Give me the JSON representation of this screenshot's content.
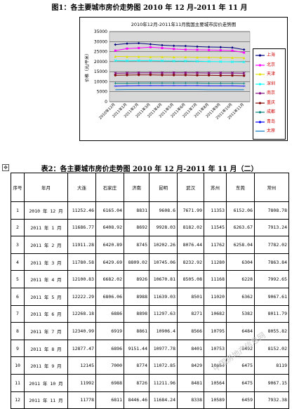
{
  "figure_title": "图1：各主要城市房价走势图 2010 年 12 月-2011 年 11 月",
  "table_title": "表2：各主要城市房价走势图 2010 年 12 月-2011 年 11 月（二）",
  "table_handle_icon": "move-cross-icon",
  "watermark": "中国房地产信息网",
  "chart_data": {
    "type": "line",
    "title": "2010年12月-2011年11月我国主要城市房价走势图",
    "ylabel": "价格（元/平米）",
    "xlabel": "",
    "ylim": [
      0,
      35000
    ],
    "yticks": [
      0,
      5000,
      10000,
      15000,
      20000,
      25000,
      30000,
      35000
    ],
    "categories": [
      "2010年12月",
      "2011年1月",
      "2011年2月",
      "2011年3月",
      "2011年4月",
      "2011年5月",
      "2011年6月",
      "2011年7月",
      "2011年8月",
      "2011年9月",
      "2011年10月",
      "2011年11月"
    ],
    "grid": true,
    "legend": "right",
    "series": [
      {
        "name": "上海",
        "color": "#000080",
        "marker": "diamond",
        "values": [
          28500,
          29000,
          29200,
          28700,
          28200,
          27900,
          27800,
          27500,
          27300,
          27200,
          27000,
          26000
        ]
      },
      {
        "name": "北京",
        "color": "#ff00ff",
        "marker": "square",
        "values": [
          25500,
          26500,
          26800,
          27200,
          26800,
          26300,
          26000,
          25900,
          25800,
          25700,
          25500,
          24500
        ]
      },
      {
        "name": "天津",
        "color": "#e0e000",
        "marker": "triangle",
        "values": [
          22600,
          22500,
          22500,
          22400,
          22400,
          22300,
          22300,
          22200,
          22200,
          22100,
          22000,
          21900
        ]
      },
      {
        "name": "深圳",
        "color": "#00ffff",
        "marker": "x",
        "values": [
          20500,
          20400,
          20500,
          20500,
          20400,
          20300,
          20300,
          20200,
          20100,
          20000,
          19900,
          19800
        ]
      },
      {
        "name": "南京",
        "color": "#800080",
        "marker": "star",
        "values": [
          14200,
          14300,
          14400,
          14400,
          14400,
          14400,
          14400,
          14400,
          14300,
          14300,
          14300,
          14200
        ]
      },
      {
        "name": "重庆",
        "color": "#800000",
        "marker": "circle",
        "values": [
          13200,
          13300,
          13400,
          13400,
          13300,
          13300,
          13300,
          13200,
          13200,
          13100,
          13100,
          13000
        ]
      },
      {
        "name": "成都",
        "color": "#008080",
        "marker": "plus",
        "values": [
          9200,
          9200,
          9300,
          9300,
          9300,
          9300,
          9300,
          9300,
          9200,
          9200,
          9200,
          9100
        ]
      },
      {
        "name": "青岛",
        "color": "#0000ff",
        "marker": "dash",
        "values": [
          7800,
          7900,
          8000,
          8000,
          8000,
          8000,
          8000,
          8000,
          7900,
          7900,
          7900,
          7800
        ]
      },
      {
        "name": "太原",
        "color": "#0070c0",
        "marker": "none",
        "values": [
          6000,
          6100,
          6100,
          6100,
          6100,
          6100,
          6100,
          6100,
          6000,
          6000,
          6000,
          6000
        ]
      }
    ]
  },
  "table": {
    "headers": [
      "序号",
      "年月",
      "大连",
      "石家庄",
      "济南",
      "昆明",
      "武汉",
      "苏州",
      "东莞",
      "常州"
    ],
    "rows": [
      [
        "1",
        "2010 年 12 月",
        "11252.46",
        "6165.04",
        "8831",
        "9608.6",
        "7671.99",
        "11353",
        "6152.06",
        "7808.78"
      ],
      [
        "2",
        "2011 年 1 月",
        "11686.77",
        "6408.92",
        "8692",
        "9928.03",
        "8182.02",
        "11545",
        "6263.67",
        "7913.24"
      ],
      [
        "3",
        "2011 年 2 月",
        "11911.28",
        "6420.89",
        "8745",
        "10202.26",
        "8076.44",
        "11762",
        "6258.04",
        "7782.02"
      ],
      [
        "4",
        "2011 年 3 月",
        "11780.58",
        "6429.69",
        "8809.02",
        "10745.06",
        "8232.92",
        "11280",
        "6304",
        "7863.84"
      ],
      [
        "5",
        "2011 年 4 月",
        "12100.83",
        "6682.02",
        "8926",
        "10670.81",
        "8505.08",
        "11168",
        "6228",
        "7992.65"
      ],
      [
        "6",
        "2011 年 5 月",
        "12222.29",
        "6806.06",
        "8988",
        "11639.03",
        "8501",
        "11020",
        "6362",
        "9067.61"
      ],
      [
        "7",
        "2011 年 6 月",
        "12268.18",
        "6886",
        "8898",
        "11297.63",
        "8271",
        "10682",
        "5382",
        "8011.79"
      ],
      [
        "8",
        "2011 年 7 月",
        "12340.99",
        "6919",
        "8861",
        "10906.4",
        "8566",
        "10795",
        "6484",
        "8055.82"
      ],
      [
        "9",
        "2011 年 8 月",
        "12877.47",
        "6896",
        "9151.44",
        "10977.78",
        "8401",
        "10753",
        "6492",
        "8152.02"
      ],
      [
        "10",
        "2011 年 9 月",
        "12145",
        "7000",
        "8774",
        "11072.85",
        "8429",
        "10654",
        "6475",
        "8119"
      ],
      [
        "11",
        "2011 年 10 月",
        "11992",
        "6988",
        "8726",
        "11211.96",
        "8481",
        "10564",
        "6475",
        "9067.15"
      ],
      [
        "12",
        "2011 年 11 月",
        "11778",
        "6811",
        "8446.46",
        "11684.24",
        "8338",
        "10589",
        "6459",
        "7932.38"
      ]
    ]
  }
}
